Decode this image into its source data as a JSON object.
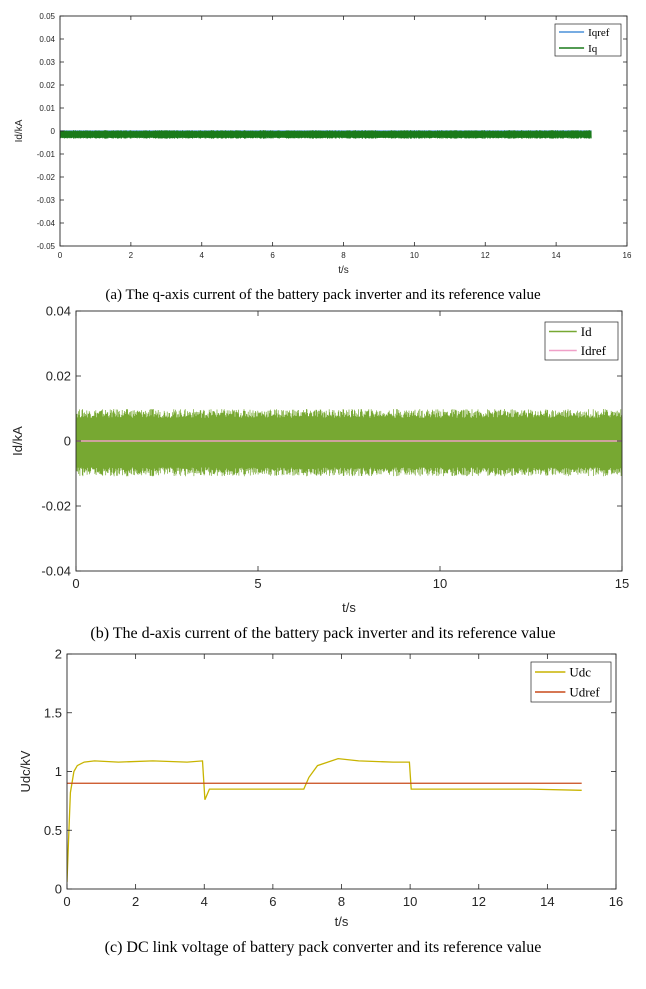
{
  "chart_data": [
    {
      "id": "a",
      "type": "line",
      "caption": "(a) The q-axis current of the battery pack inverter and its reference value",
      "xlabel": "t/s",
      "ylabel": "Id/kA",
      "xlim": [
        0,
        16
      ],
      "ylim": [
        -0.05,
        0.05
      ],
      "xticks": [
        0,
        2,
        4,
        6,
        8,
        10,
        12,
        14,
        16
      ],
      "yticks": [
        -0.05,
        -0.04,
        -0.03,
        -0.02,
        -0.01,
        0,
        0.01,
        0.02,
        0.03,
        0.04,
        0.05
      ],
      "xtick_labels": [
        "0",
        "2",
        "4",
        "6",
        "8",
        "10",
        "12",
        "14",
        "16"
      ],
      "ytick_labels": [
        "-0.05",
        "-0.04",
        "-0.03",
        "-0.02",
        "-0.01",
        "0",
        "0.01",
        "0.02",
        "0.03",
        "0.04",
        "0.05"
      ],
      "legend_position": "top-right",
      "series": [
        {
          "name": "Iqref",
          "color": "#4a90d9",
          "kind": "constant",
          "value": 0,
          "x_range": [
            0,
            15
          ]
        },
        {
          "name": "Iq",
          "color": "#1a7a1a",
          "kind": "oscillation",
          "center": -0.0015,
          "amplitude": 0.0016,
          "x_range": [
            0,
            15
          ]
        }
      ]
    },
    {
      "id": "b",
      "type": "line",
      "caption": "(b) The d-axis current of the battery pack inverter and its reference value",
      "xlabel": "t/s",
      "ylabel": "Id/kA",
      "xlim": [
        0,
        15
      ],
      "ylim": [
        -0.04,
        0.04
      ],
      "xticks": [
        0,
        5,
        10,
        15
      ],
      "yticks": [
        -0.04,
        -0.02,
        0,
        0.02,
        0.04
      ],
      "xtick_labels": [
        "0",
        "5",
        "10",
        "15"
      ],
      "ytick_labels": [
        "-0.04",
        "-0.02",
        "0",
        "0.02",
        "0.04"
      ],
      "legend_position": "top-right",
      "series": [
        {
          "name": "Id",
          "color": "#77a832",
          "kind": "oscillation",
          "center": -0.0005,
          "amplitude": 0.009,
          "x_range": [
            0,
            15
          ]
        },
        {
          "name": "Idref",
          "color": "#f0a0c8",
          "kind": "constant",
          "value": 0,
          "x_range": [
            0,
            15
          ]
        }
      ]
    },
    {
      "id": "c",
      "type": "line",
      "caption": "(c) DC link voltage of battery pack converter and its reference value",
      "xlabel": "t/s",
      "ylabel": "Udc/kV",
      "xlim": [
        0,
        16
      ],
      "ylim": [
        0,
        2
      ],
      "xticks": [
        0,
        2,
        4,
        6,
        8,
        10,
        12,
        14,
        16
      ],
      "yticks": [
        0,
        0.5,
        1,
        1.5,
        2
      ],
      "xtick_labels": [
        "0",
        "2",
        "4",
        "6",
        "8",
        "10",
        "12",
        "14",
        "16"
      ],
      "ytick_labels": [
        "0",
        "0.5",
        "1",
        "1.5",
        "2"
      ],
      "legend_position": "top-right",
      "series": [
        {
          "name": "Udc",
          "color": "#c8b400",
          "kind": "points",
          "x": [
            0,
            0.05,
            0.1,
            0.2,
            0.3,
            0.5,
            0.8,
            1.5,
            2.5,
            3.5,
            3.95,
            4.02,
            4.15,
            4.5,
            5.5,
            6.9,
            7.05,
            7.3,
            7.6,
            7.9,
            8.5,
            9.5,
            9.98,
            10.03,
            10.5,
            12,
            13.5,
            15
          ],
          "y": [
            0.06,
            0.45,
            0.82,
            1.0,
            1.05,
            1.08,
            1.09,
            1.08,
            1.09,
            1.08,
            1.09,
            0.76,
            0.85,
            0.85,
            0.85,
            0.85,
            0.95,
            1.05,
            1.08,
            1.11,
            1.09,
            1.08,
            1.08,
            0.85,
            0.85,
            0.85,
            0.85,
            0.84
          ]
        },
        {
          "name": "Udref",
          "color": "#c84a1a",
          "kind": "constant",
          "value": 0.9,
          "x_range": [
            0,
            15
          ]
        }
      ]
    }
  ]
}
